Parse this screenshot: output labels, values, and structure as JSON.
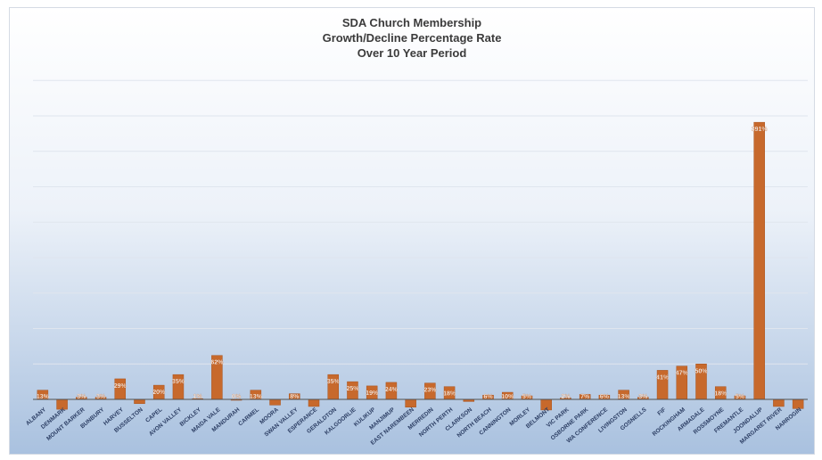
{
  "chart_data": {
    "type": "bar",
    "title_lines": [
      "SDA Church Membership",
      "Growth/Decline Percentage Rate",
      "Over 10 Year Period"
    ],
    "xlabel": "",
    "ylabel": "",
    "ylim": [
      -20,
      800
    ],
    "grid": true,
    "legend": "none",
    "bar_color": "#c7692c",
    "categories": [
      "ALBANY",
      "DENMARK",
      "MOUNT BARKER",
      "BUNBURY",
      "HARVEY",
      "BUSSELTON",
      "CAPEL",
      "AVON VALLEY",
      "BICKLEY",
      "MAIDA VALE",
      "MANDURAH",
      "CARMEL",
      "MOORA",
      "SWAN VALLEY",
      "ESPERANCE",
      "GERALDTON",
      "KALGOORLIE",
      "KULIKUP",
      "MANJIMUP",
      "EAST NAREMBEEN",
      "MERREDIN",
      "NORTH PERTH",
      "CLARKSON",
      "NORTH BEACH",
      "CANNINGTON",
      "MORLEY",
      "BELMONT",
      "VIC PARK",
      "OSBORNE PARK",
      "WA CONFERENCE",
      "LIVINGSTON",
      "GOSNELLS",
      "FIF",
      "ROCKINGHAM",
      "ARMADALE",
      "ROSSMOYNE",
      "FREMANTLE",
      "JOONDALUP",
      "MARGARET RIVER",
      "NARROGIN"
    ],
    "values": [
      13,
      -14,
      3,
      3,
      29,
      -6,
      20,
      35,
      1,
      62,
      0,
      13,
      -8,
      8,
      -10,
      35,
      25,
      19,
      24,
      -11,
      23,
      18,
      -3,
      6,
      10,
      5,
      -15,
      2,
      7,
      6,
      13,
      3,
      41,
      47,
      50,
      18,
      5,
      391,
      -10,
      -13
    ],
    "value_labels": [
      "13%",
      "",
      "3%",
      "3%",
      "29%",
      "",
      "20%",
      "35%",
      "1%",
      "62%",
      "0%",
      "13%",
      "",
      "8%",
      "",
      "35%",
      "25%",
      "19%",
      "24%",
      "",
      "23%",
      "18%",
      "",
      "6%",
      "10%",
      "5%",
      "",
      "2%",
      "7%",
      "6%",
      "13%",
      "3%",
      "41%",
      "47%",
      "50%",
      "18%",
      "5%",
      "391%",
      "",
      ""
    ]
  }
}
